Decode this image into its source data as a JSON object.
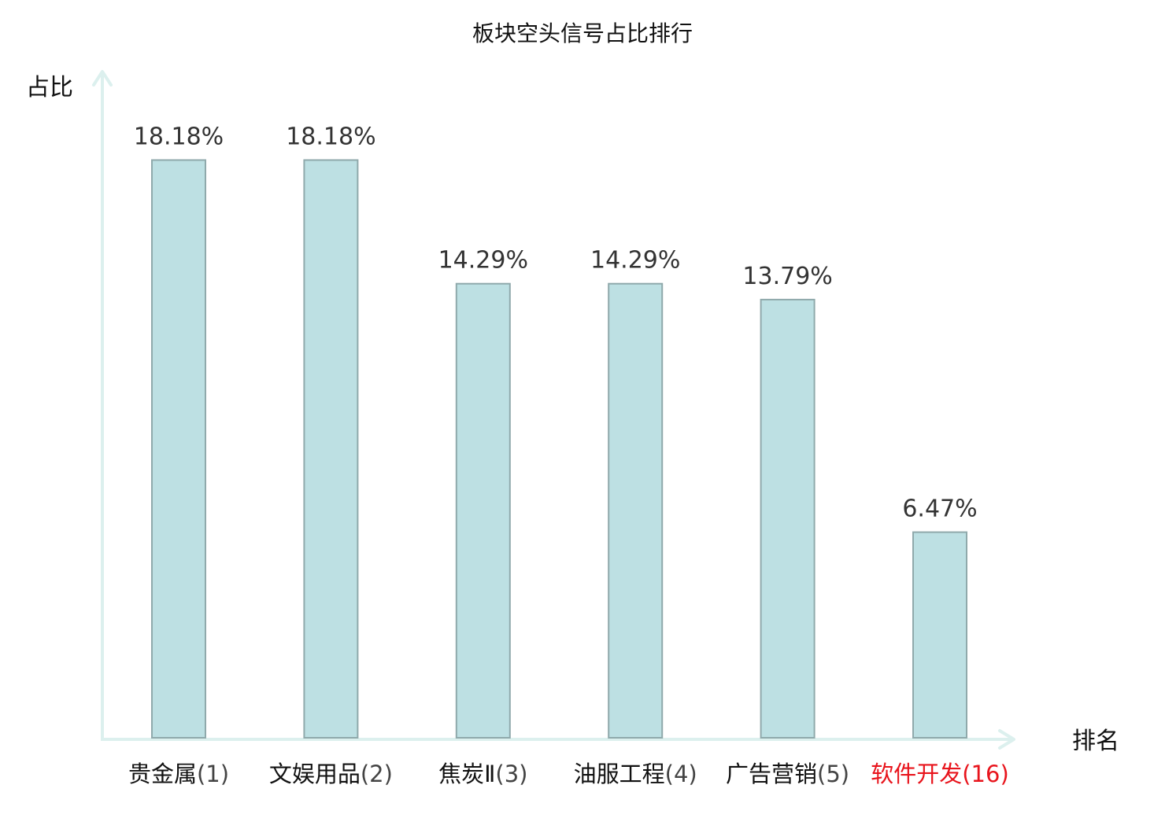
{
  "chart_data": {
    "type": "bar",
    "title": "板块空头信号占比排行",
    "ylabel": "占比",
    "xlabel": "排名",
    "ylim": [
      0,
      20
    ],
    "categories": [
      {
        "name": "贵金属",
        "rank": "(1)"
      },
      {
        "name": "文娱用品",
        "rank": "(2)"
      },
      {
        "name": "焦炭Ⅱ",
        "rank": "(3)"
      },
      {
        "name": "油服工程",
        "rank": "(4)"
      },
      {
        "name": "广告营销",
        "rank": "(5)"
      },
      {
        "name": "软件开发",
        "rank": "(16)"
      }
    ],
    "values": [
      18.18,
      18.18,
      14.29,
      14.29,
      13.79,
      6.47
    ],
    "value_labels": [
      "18.18%",
      "18.18%",
      "14.29%",
      "14.29%",
      "13.79%",
      "6.47%"
    ],
    "highlight_index": 5,
    "grid": false,
    "legend": "none"
  },
  "colors": {
    "bar_fill": "#bde0e3",
    "bar_stroke": "#8fa9ab",
    "axis": "#dcf0ee",
    "highlight_label": "#e8141c"
  }
}
